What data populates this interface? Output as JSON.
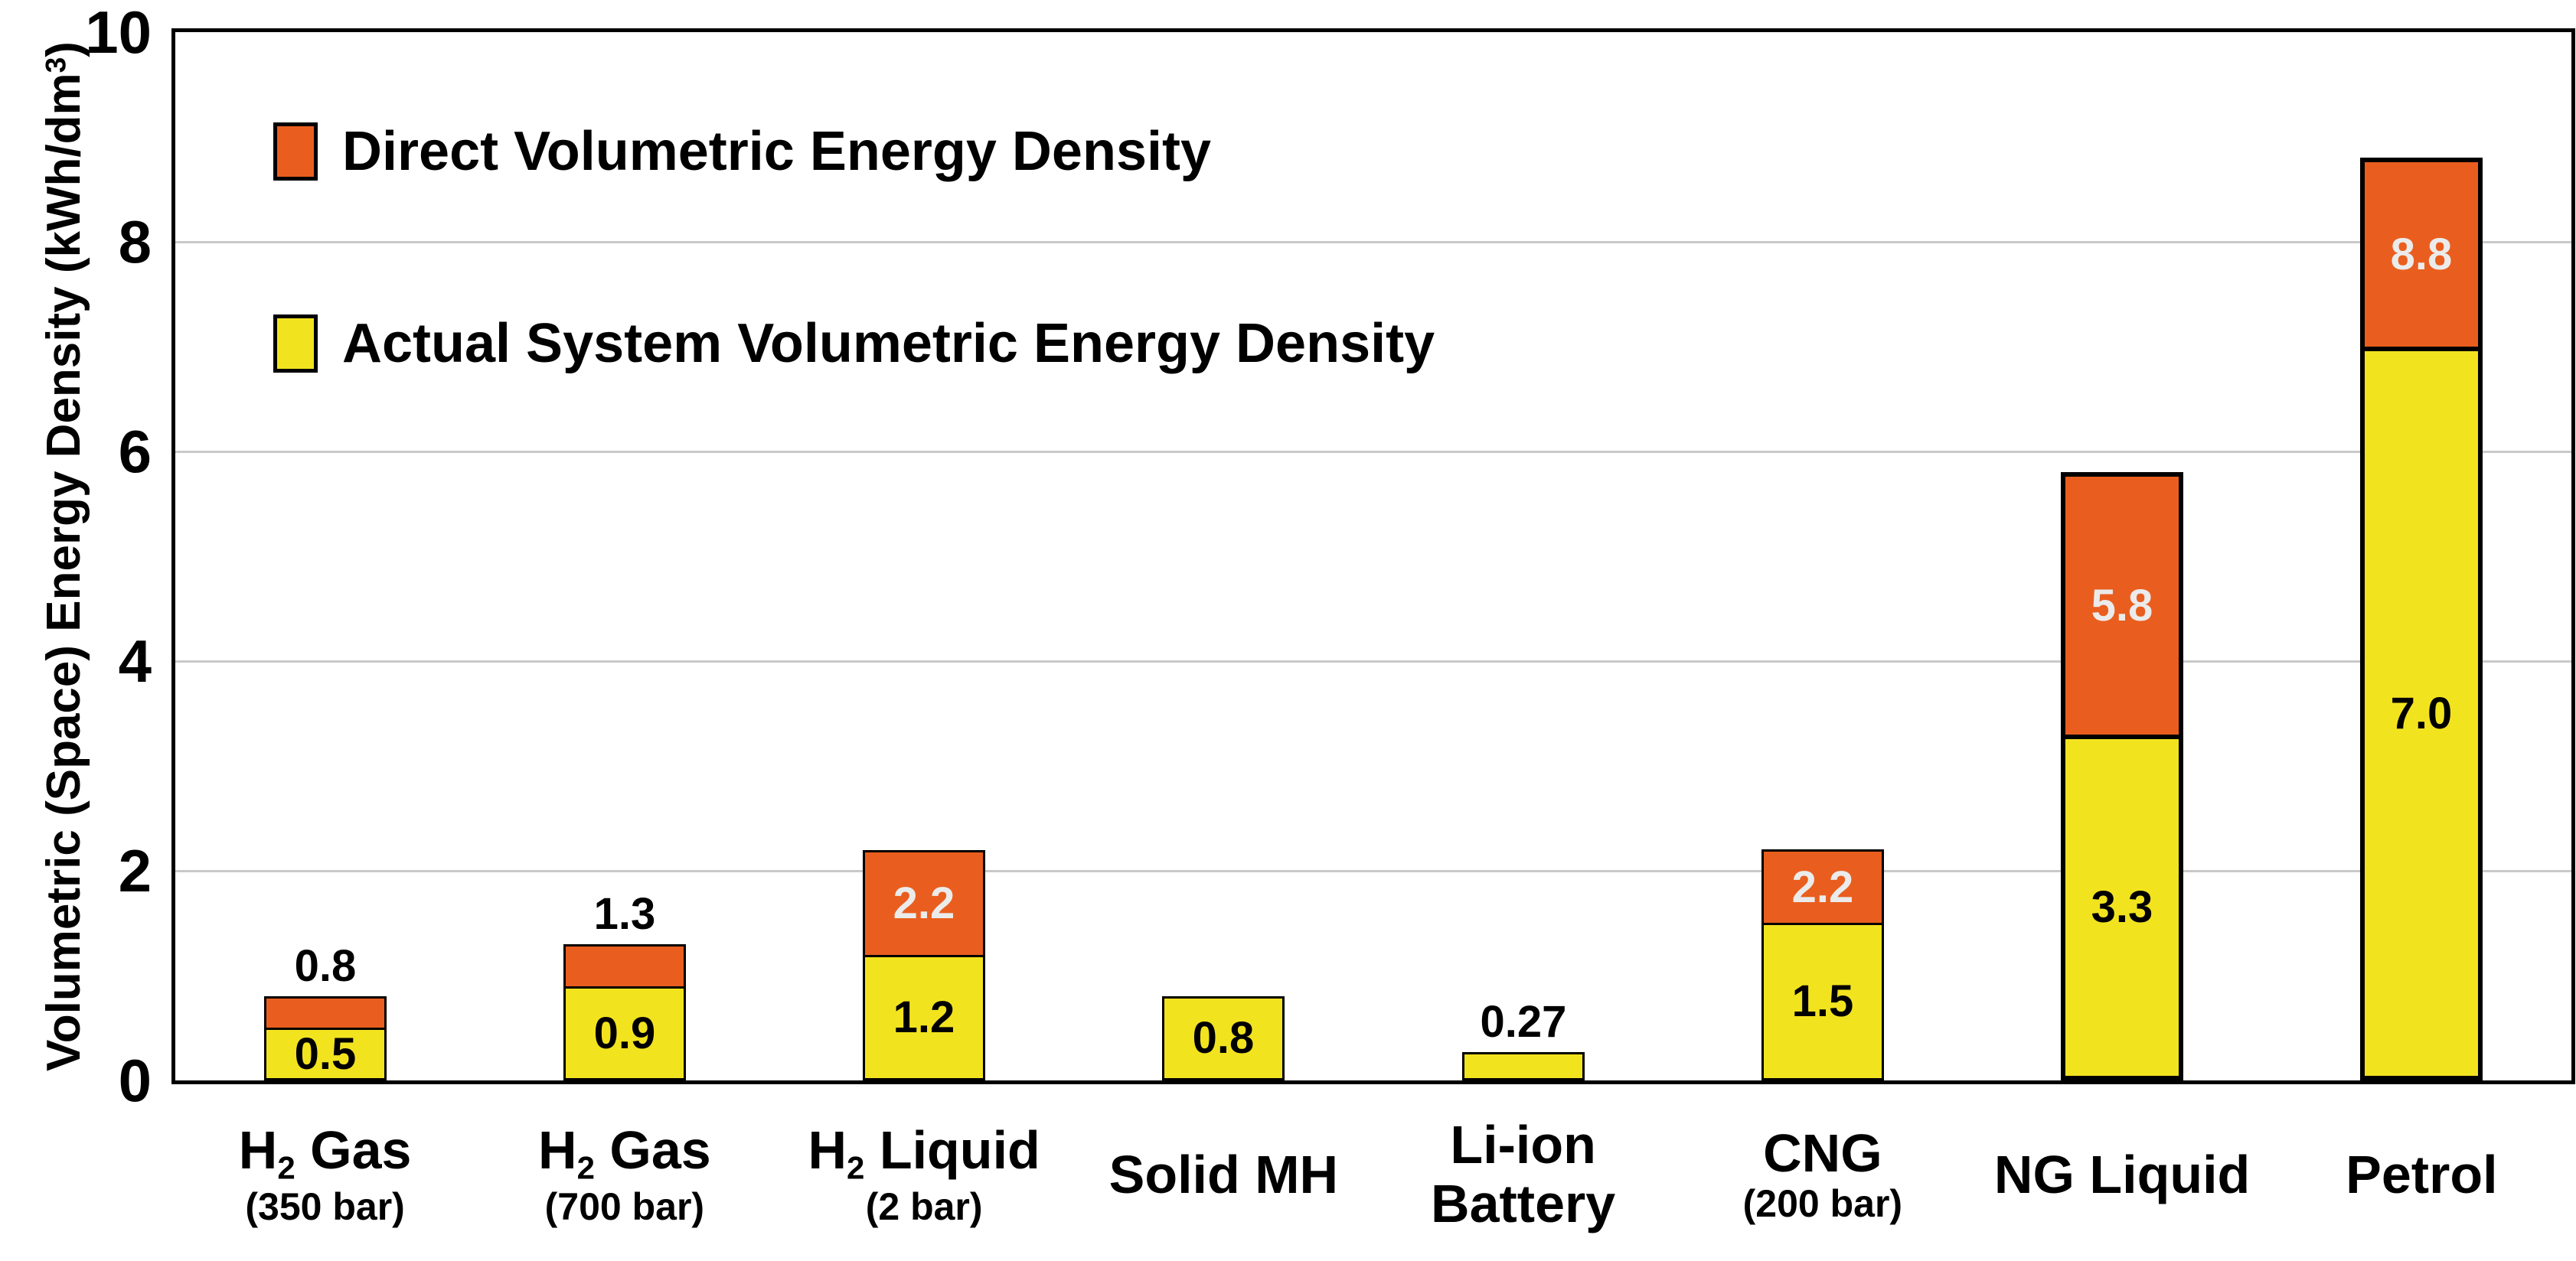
{
  "figure": {
    "background": "#FFFFFF",
    "frame_color": "#000000",
    "grid_color": "#C9C9C9",
    "value_label_colors": {
      "on_direct": "#EBEBEB",
      "default": "#000000"
    }
  },
  "chart_data": {
    "type": "bar",
    "stacking": "overlay-total",
    "title": "",
    "ylabel": "Volumetric (Space) Energy Density (kWh/dm3)",
    "ylabel_parts": [
      {
        "t": "Volumetric (Space) Energy Density (kWh/dm"
      },
      {
        "t": "3",
        "sup": true
      },
      {
        "t": ")"
      }
    ],
    "xlabel": "",
    "ylim": [
      0,
      10
    ],
    "yticks": [
      0,
      2,
      4,
      6,
      8,
      10
    ],
    "gridline_values": [
      2,
      4,
      6,
      8
    ],
    "grid": true,
    "legend_position": "top-left-inside",
    "legend": [
      {
        "name": "direct",
        "label": "Direct Volumetric Energy Density",
        "color": "#E95E1E"
      },
      {
        "name": "actual",
        "label": "Actual System Volumetric Energy Density",
        "color": "#F2E31F"
      }
    ],
    "categories": [
      "H2 Gas (350 bar)",
      "H2 Gas (700 bar)",
      "H2 Liquid (2 bar)",
      "Solid MH",
      "Li-ion Battery",
      "CNG (200 bar)",
      "NG Liquid",
      "Petrol"
    ],
    "series": [
      {
        "name": "Direct Volumetric Energy Density",
        "values": [
          0.8,
          1.3,
          2.2,
          null,
          null,
          2.2,
          5.8,
          8.8
        ]
      },
      {
        "name": "Actual System Volumetric Energy Density",
        "values": [
          0.5,
          0.9,
          1.2,
          0.8,
          0.27,
          1.5,
          3.3,
          7.0
        ]
      }
    ],
    "bars": [
      {
        "line1": [
          {
            "t": "H"
          },
          {
            "t": "2",
            "sub": true
          },
          {
            "t": " Gas"
          }
        ],
        "line2": {
          "t": "(350 bar)",
          "small": true
        },
        "direct": 0.8,
        "actual": 0.5,
        "direct_label": "0.8",
        "actual_label": "0.5",
        "direct_label_pos": "above",
        "actual_label_pos": "inside",
        "thick_outline": false
      },
      {
        "line1": [
          {
            "t": "H"
          },
          {
            "t": "2",
            "sub": true
          },
          {
            "t": " Gas"
          }
        ],
        "line2": {
          "t": "(700 bar)",
          "small": true
        },
        "direct": 1.3,
        "actual": 0.9,
        "direct_label": "1.3",
        "actual_label": "0.9",
        "direct_label_pos": "above",
        "actual_label_pos": "inside",
        "thick_outline": false
      },
      {
        "line1": [
          {
            "t": "H"
          },
          {
            "t": "2",
            "sub": true
          },
          {
            "t": " Liquid"
          }
        ],
        "line2": {
          "t": "(2 bar)",
          "small": true
        },
        "direct": 2.2,
        "actual": 1.2,
        "direct_label": "2.2",
        "actual_label": "1.2",
        "direct_label_pos": "inside",
        "actual_label_pos": "inside",
        "thick_outline": false
      },
      {
        "line1": [
          {
            "t": "Solid MH"
          }
        ],
        "line2": null,
        "direct": null,
        "actual": 0.8,
        "direct_label": null,
        "actual_label": "0.8",
        "direct_label_pos": null,
        "actual_label_pos": "inside",
        "thick_outline": false
      },
      {
        "line1": [
          {
            "t": "Li-ion"
          }
        ],
        "line2": {
          "t": "Battery",
          "small": false
        },
        "direct": null,
        "actual": 0.27,
        "direct_label": null,
        "actual_label": "0.27",
        "direct_label_pos": null,
        "actual_label_pos": "above",
        "thick_outline": false
      },
      {
        "line1": [
          {
            "t": "CNG"
          }
        ],
        "line2": {
          "t": "(200 bar)",
          "small": true
        },
        "direct": 2.2,
        "actual": 1.5,
        "direct_label": "2.2",
        "actual_label": "1.5",
        "direct_label_pos": "inside",
        "actual_label_pos": "inside",
        "thick_outline": false
      },
      {
        "line1": [
          {
            "t": "NG Liquid"
          }
        ],
        "line2": null,
        "direct": 5.8,
        "actual": 3.3,
        "direct_label": "5.8",
        "actual_label": "3.3",
        "direct_label_pos": "inside",
        "actual_label_pos": "inside",
        "thick_outline": true
      },
      {
        "line1": [
          {
            "t": "Petrol"
          }
        ],
        "line2": null,
        "direct": 8.8,
        "actual": 7.0,
        "direct_label": "8.8",
        "actual_label": "7.0",
        "direct_label_pos": "inside",
        "actual_label_pos": "inside",
        "thick_outline": true
      }
    ]
  }
}
